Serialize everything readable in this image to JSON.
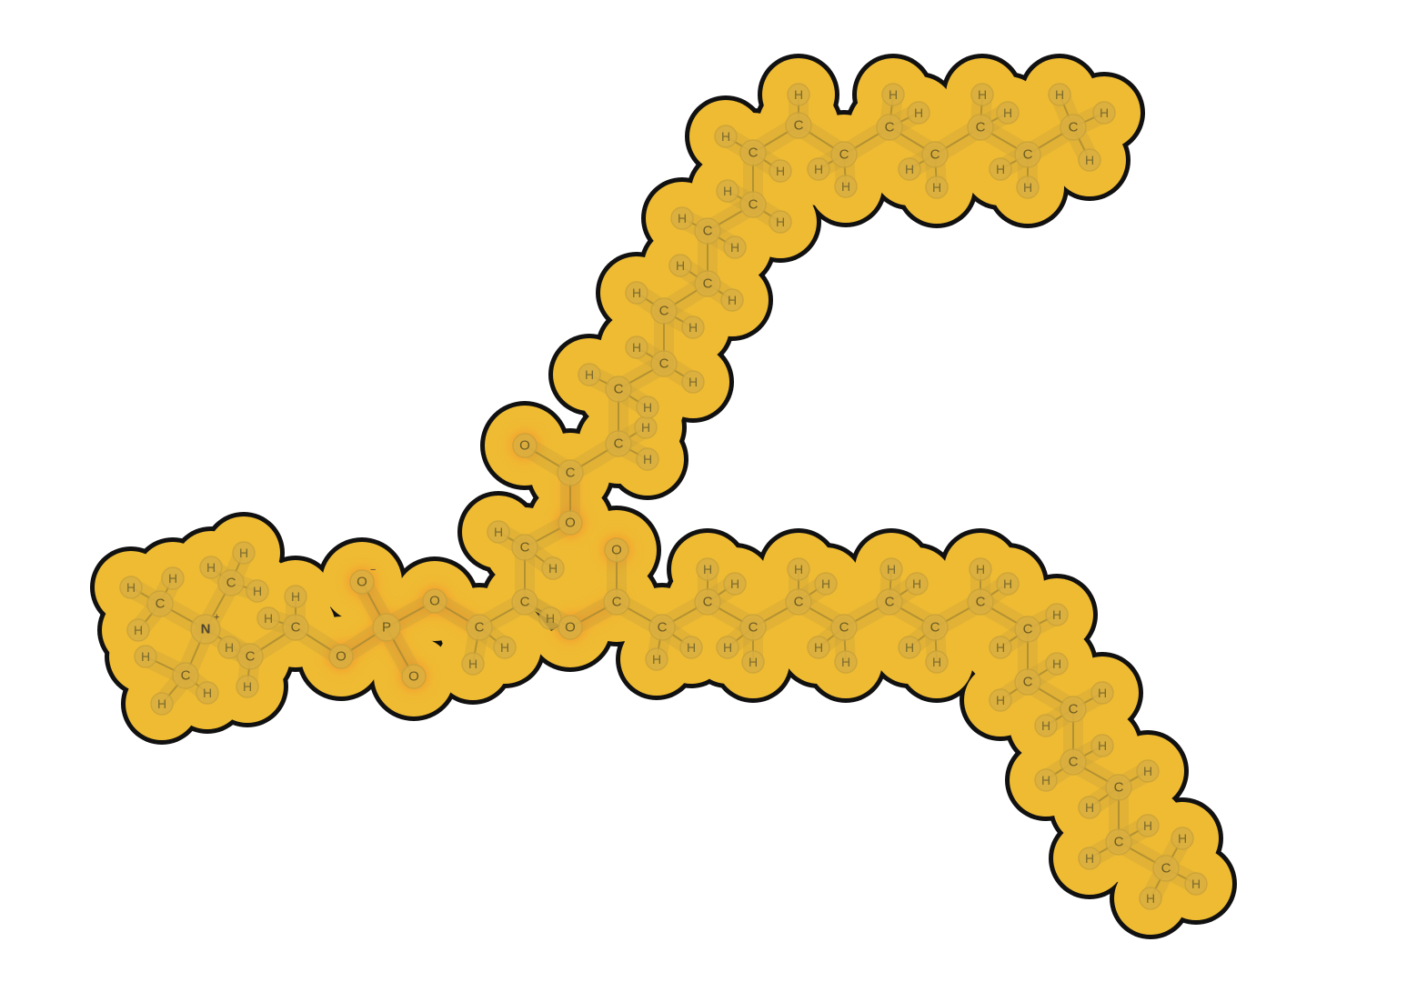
{
  "colors": {
    "envelope": "#efbb33",
    "outline": "#111111",
    "atom_disc": "#dcb040",
    "atom_edge": "#c9a23a",
    "bond": "#a88a33",
    "oxygen_glow": "#f59a2e",
    "label": "#7a6a2e"
  },
  "labels": {
    "carbon": "C",
    "hydrogen": "H",
    "oxygen": "O",
    "phosphorus": "P",
    "nitrogen": "N",
    "positive": "+",
    "negative": "−"
  }
}
